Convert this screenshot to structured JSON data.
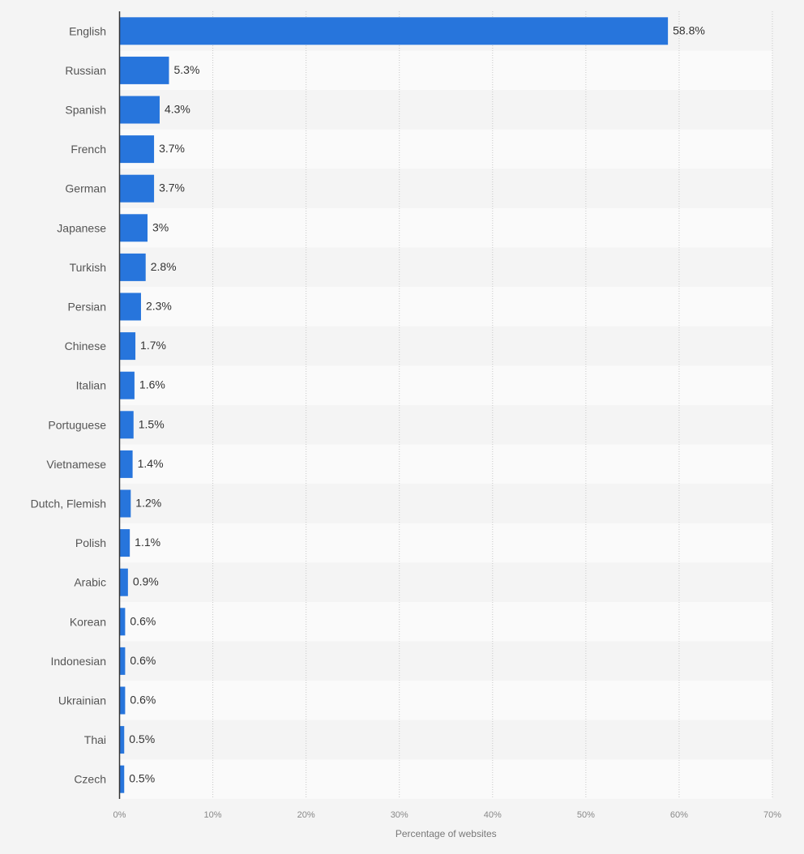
{
  "chart_data": {
    "type": "bar",
    "orientation": "horizontal",
    "title": "",
    "xlabel": "Percentage of websites",
    "ylabel": "",
    "xlim": [
      0,
      70
    ],
    "x_ticks": [
      0,
      10,
      20,
      30,
      40,
      50,
      60,
      70
    ],
    "x_tick_labels": [
      "0%",
      "10%",
      "20%",
      "30%",
      "40%",
      "50%",
      "60%",
      "70%"
    ],
    "grid": true,
    "legend": "none",
    "bar_color": "#2775dc",
    "categories": [
      "English",
      "Russian",
      "Spanish",
      "French",
      "German",
      "Japanese",
      "Turkish",
      "Persian",
      "Chinese",
      "Italian",
      "Portuguese",
      "Vietnamese",
      "Dutch, Flemish",
      "Polish",
      "Arabic",
      "Korean",
      "Indonesian",
      "Ukrainian",
      "Thai",
      "Czech"
    ],
    "values": [
      58.8,
      5.3,
      4.3,
      3.7,
      3.7,
      3,
      2.8,
      2.3,
      1.7,
      1.6,
      1.5,
      1.4,
      1.2,
      1.1,
      0.9,
      0.6,
      0.6,
      0.6,
      0.5,
      0.5
    ],
    "value_labels": [
      "58.8%",
      "5.3%",
      "4.3%",
      "3.7%",
      "3.7%",
      "3%",
      "2.8%",
      "2.3%",
      "1.7%",
      "1.6%",
      "1.5%",
      "1.4%",
      "1.2%",
      "1.1%",
      "0.9%",
      "0.6%",
      "0.6%",
      "0.6%",
      "0.5%",
      "0.5%"
    ]
  }
}
